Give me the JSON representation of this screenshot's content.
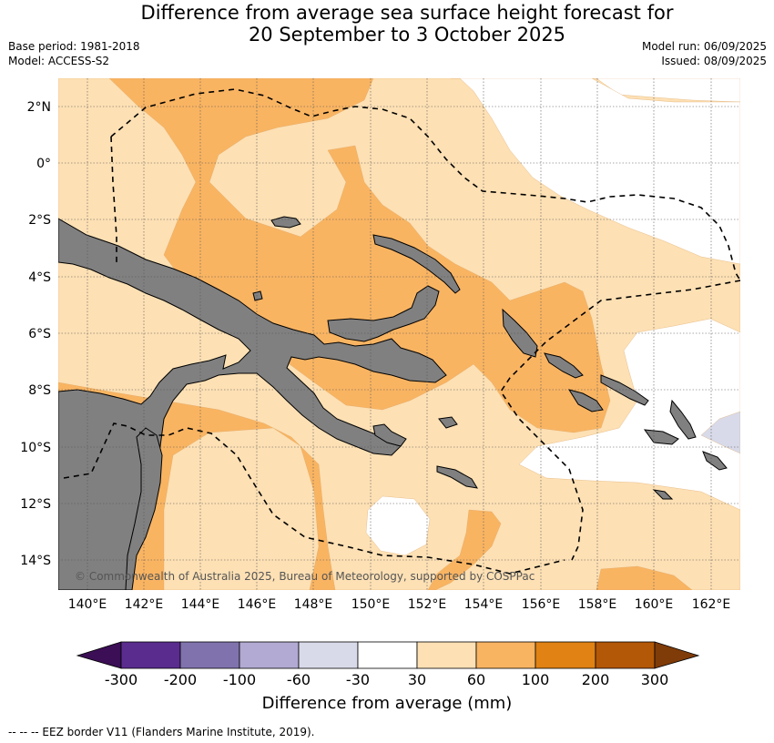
{
  "header": {
    "title_line1": "Difference from average sea surface height forecast for",
    "title_line2": "20 September to 3 October 2025",
    "base_period": "Base period: 1981-2018",
    "model": "Model: ACCESS-S2",
    "model_run": "Model run: 06/09/2025",
    "issued": "Issued: 08/09/2025"
  },
  "map": {
    "lon_labels": [
      "140°E",
      "142°E",
      "144°E",
      "146°E",
      "148°E",
      "150°E",
      "152°E",
      "154°E",
      "156°E",
      "158°E",
      "160°E",
      "162°E"
    ],
    "lat_labels": [
      "2°N",
      "0°",
      "2°S",
      "4°S",
      "6°S",
      "8°S",
      "10°S",
      "12°S",
      "14°S"
    ],
    "credit": "© Commonwealth of Australia 2025, Bureau of Meteorology, supported by COSPPac",
    "colors": {
      "land": "#808080",
      "c30_60": "#fde0b4",
      "c60_100": "#f9b462",
      "cneg60_30": "#d8dae9"
    }
  },
  "colorbar": {
    "tick_labels": [
      "-300",
      "-200",
      "-100",
      "-60",
      "-30",
      "30",
      "60",
      "100",
      "200",
      "300"
    ],
    "colors": [
      "#3b0e55",
      "#5a2c8e",
      "#8073ad",
      "#b2aad2",
      "#d8dae9",
      "#ffffff",
      "#fde0b4",
      "#f9b462",
      "#e08214",
      "#b35806",
      "#7f3b08"
    ],
    "label": "Difference from average (mm)"
  },
  "footer": {
    "legend": "--  --  -- EEZ border V11 (Flanders Marine Institute, 2019)."
  }
}
